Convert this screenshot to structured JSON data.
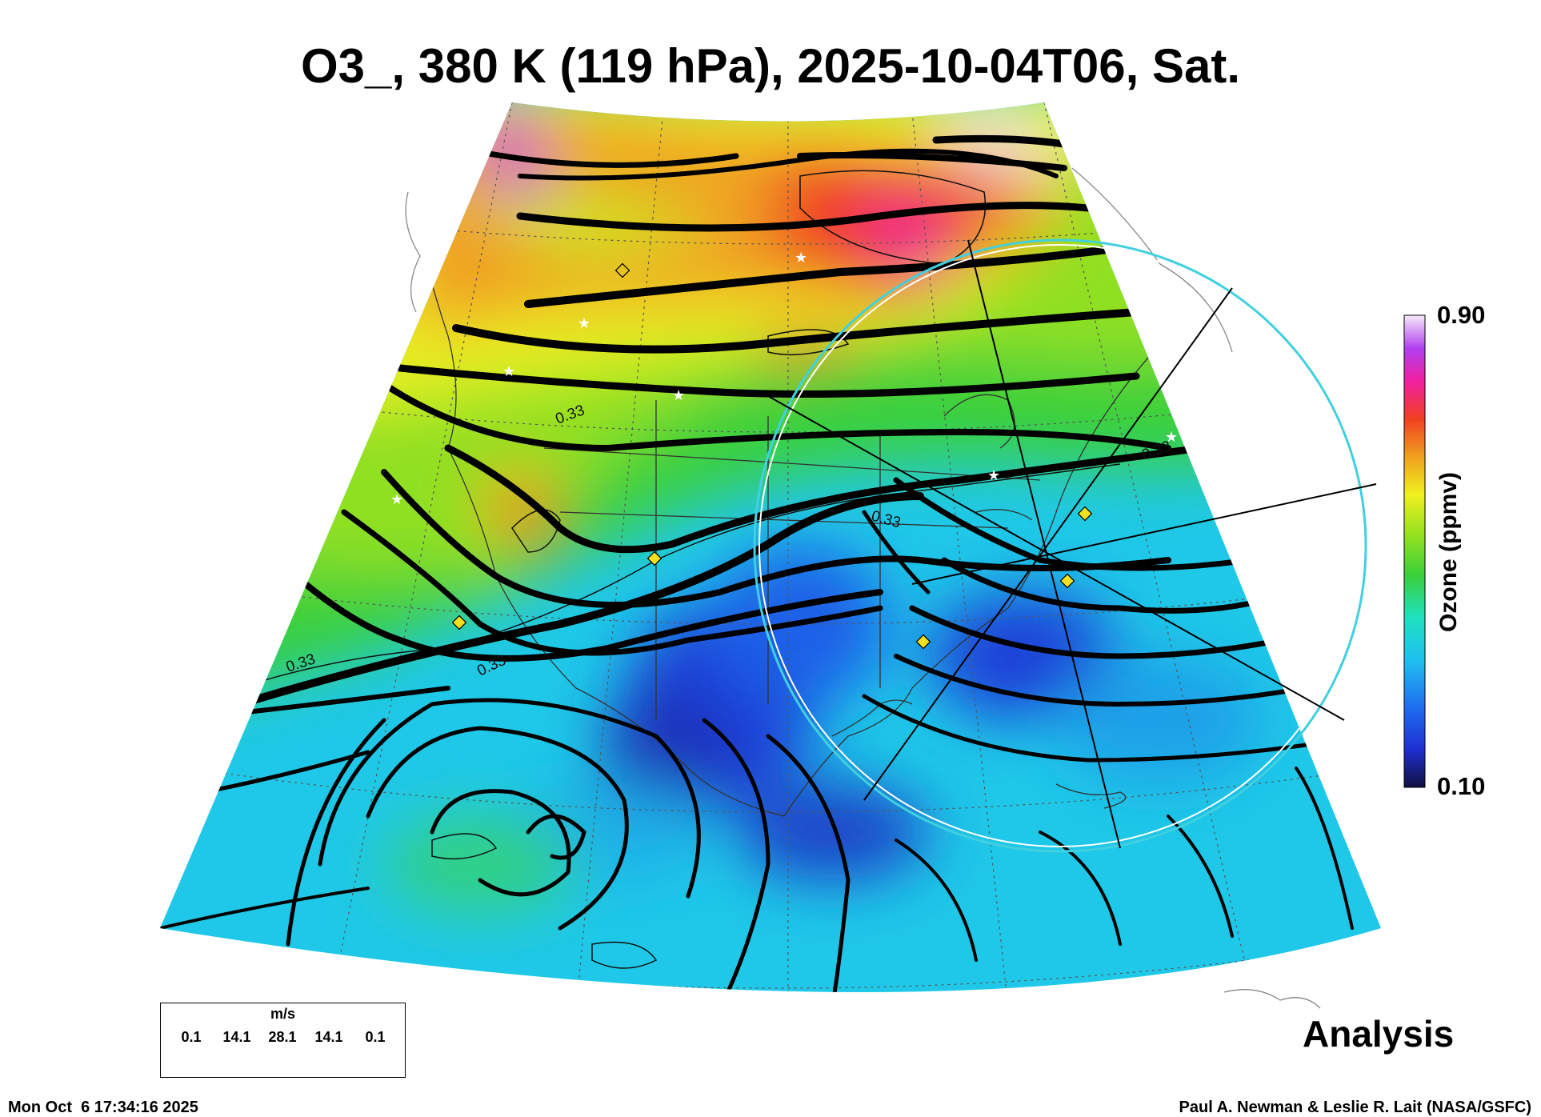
{
  "title": "O3_, 380 K (119 hPa), 2025-10-04T06, Sat.",
  "colorbar": {
    "max_label": "0.90",
    "min_label": "0.10",
    "label": "Ozone (ppmv)",
    "colors": [
      "#101040",
      "#1f2fd0",
      "#1f6ef0",
      "#1fc0f0",
      "#1fe0c0",
      "#3ad03a",
      "#90e020",
      "#f0f020",
      "#f0a020",
      "#f04020",
      "#f020a0",
      "#b040f0",
      "#f0e0f0"
    ]
  },
  "contour_label": "0.33",
  "legend": {
    "unit": "m/s",
    "ticks": [
      "0.1",
      "14.1",
      "28.1",
      "14.1",
      "0.1"
    ]
  },
  "analysis_label": "Analysis",
  "timestamp": "Mon Oct  6 17:34:16 2025",
  "credit": "Paul A. Newman & Leslie R. Lait (NASA/GSFC)"
}
